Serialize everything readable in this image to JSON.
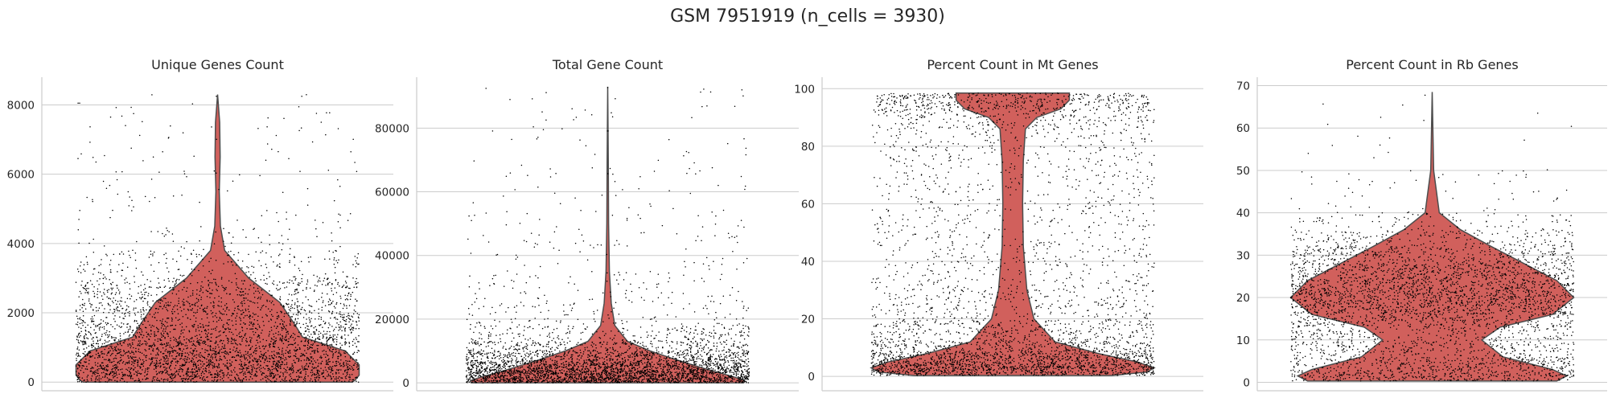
{
  "figure_title": "GSM 7951919 (n_cells = 3930)",
  "colors": {
    "violin_fill": "#d1605c",
    "violin_edge": "#4d4d4d",
    "points": "#000000",
    "grid": "#cccccc"
  },
  "chart_data": [
    {
      "type": "violin",
      "title": "Unique Genes Count",
      "xlabel": "",
      "ylabel": "",
      "ylim": [
        -250,
        8800
      ],
      "yticks": [
        0,
        2000,
        4000,
        6000,
        8000
      ],
      "ytick_labels": [
        "0",
        "2000",
        "4000",
        "6000",
        "8000"
      ],
      "grid": true,
      "n_points": 3930,
      "density_profile": [
        [
          8300,
          0.0
        ],
        [
          7500,
          0.015
        ],
        [
          6500,
          0.018
        ],
        [
          5500,
          0.012
        ],
        [
          4500,
          0.02
        ],
        [
          3800,
          0.05
        ],
        [
          3000,
          0.22
        ],
        [
          2300,
          0.44
        ],
        [
          1700,
          0.54
        ],
        [
          1300,
          0.6
        ],
        [
          900,
          0.9
        ],
        [
          500,
          1.0
        ],
        [
          200,
          1.0
        ],
        [
          50,
          0.97
        ],
        [
          0,
          0.95
        ]
      ]
    },
    {
      "type": "violin",
      "title": "Total Gene Count",
      "xlabel": "",
      "ylabel": "",
      "ylim": [
        -2500,
        96000
      ],
      "yticks": [
        0,
        20000,
        40000,
        60000,
        80000
      ],
      "ytick_labels": [
        "0",
        "20000",
        "40000",
        "60000",
        "80000"
      ],
      "grid": true,
      "n_points": 3930,
      "density_profile": [
        [
          93000,
          0.0
        ],
        [
          70000,
          0.004
        ],
        [
          50000,
          0.006
        ],
        [
          35000,
          0.012
        ],
        [
          25000,
          0.025
        ],
        [
          18000,
          0.05
        ],
        [
          13000,
          0.14
        ],
        [
          10000,
          0.3
        ],
        [
          7000,
          0.5
        ],
        [
          4000,
          0.72
        ],
        [
          2000,
          0.88
        ],
        [
          1000,
          0.95
        ],
        [
          500,
          0.97
        ],
        [
          0,
          0.96
        ]
      ]
    },
    {
      "type": "violin",
      "title": "Percent Count in Mt Genes",
      "xlabel": "",
      "ylabel": "",
      "ylim": [
        -5,
        104
      ],
      "yticks": [
        0,
        20,
        40,
        60,
        80,
        100
      ],
      "ytick_labels": [
        "0",
        "20",
        "40",
        "60",
        "80",
        "100"
      ],
      "grid": true,
      "n_points": 3930,
      "density_profile": [
        [
          98.5,
          0.4
        ],
        [
          96,
          0.4
        ],
        [
          93,
          0.34
        ],
        [
          90,
          0.17
        ],
        [
          86,
          0.09
        ],
        [
          75,
          0.075
        ],
        [
          60,
          0.07
        ],
        [
          45,
          0.075
        ],
        [
          30,
          0.1
        ],
        [
          20,
          0.15
        ],
        [
          12,
          0.3
        ],
        [
          8,
          0.6
        ],
        [
          5,
          0.88
        ],
        [
          3,
          1.0
        ],
        [
          1.5,
          0.95
        ],
        [
          0.3,
          0.7
        ]
      ]
    },
    {
      "type": "violin",
      "title": "Percent Count in Rb Genes",
      "xlabel": "",
      "ylabel": "",
      "ylim": [
        -2,
        72
      ],
      "yticks": [
        0,
        10,
        20,
        30,
        40,
        50,
        60,
        70
      ],
      "ytick_labels": [
        "0",
        "10",
        "20",
        "30",
        "40",
        "50",
        "60",
        "70"
      ],
      "grid": true,
      "n_points": 3930,
      "density_profile": [
        [
          68.5,
          0.0
        ],
        [
          50,
          0.01
        ],
        [
          40,
          0.05
        ],
        [
          36,
          0.2
        ],
        [
          32,
          0.42
        ],
        [
          28,
          0.65
        ],
        [
          24,
          0.88
        ],
        [
          20,
          1.0
        ],
        [
          16,
          0.85
        ],
        [
          13,
          0.48
        ],
        [
          10,
          0.35
        ],
        [
          6,
          0.5
        ],
        [
          3,
          0.85
        ],
        [
          1.5,
          0.95
        ],
        [
          0.3,
          0.88
        ]
      ]
    }
  ]
}
